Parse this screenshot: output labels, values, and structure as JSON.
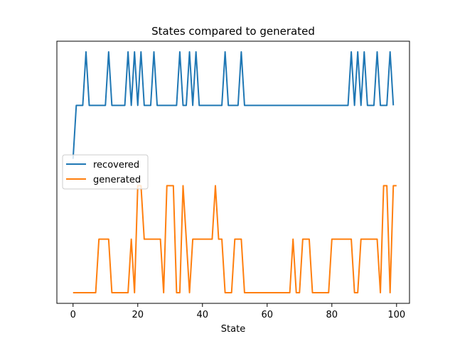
{
  "chart_data": {
    "type": "line",
    "title": "States compared to generated",
    "xlabel": "State",
    "ylabel": "",
    "xlim": [
      -5,
      104
    ],
    "ylim": [
      -0.2,
      4.7
    ],
    "x_ticks": [
      0,
      20,
      40,
      60,
      80,
      100
    ],
    "y_ticks_visible": false,
    "grid": false,
    "legend_position": "center-left",
    "series": [
      {
        "name": "recovered",
        "color": "#1f77b4",
        "values": [
          2.5,
          3.5,
          3.5,
          3.5,
          4.5,
          3.5,
          3.5,
          3.5,
          3.5,
          3.5,
          3.5,
          4.5,
          3.5,
          3.5,
          3.5,
          3.5,
          3.5,
          4.5,
          3.5,
          4.5,
          3.5,
          4.5,
          3.5,
          3.5,
          3.5,
          4.5,
          3.5,
          3.5,
          3.5,
          3.5,
          3.5,
          3.5,
          3.5,
          4.5,
          3.5,
          3.5,
          4.5,
          3.5,
          4.5,
          3.5,
          3.5,
          3.5,
          3.5,
          3.5,
          3.5,
          3.5,
          3.5,
          4.5,
          3.5,
          3.5,
          3.5,
          3.5,
          4.5,
          3.5,
          3.5,
          3.5,
          3.5,
          3.5,
          3.5,
          3.5,
          3.5,
          3.5,
          3.5,
          3.5,
          3.5,
          3.5,
          3.5,
          3.5,
          3.5,
          3.5,
          3.5,
          3.5,
          3.5,
          3.5,
          3.5,
          3.5,
          3.5,
          3.5,
          3.5,
          3.5,
          3.5,
          3.5,
          3.5,
          3.5,
          3.5,
          3.5,
          4.5,
          3.5,
          4.5,
          3.5,
          4.5,
          3.5,
          3.5,
          3.5,
          4.5,
          3.5,
          3.5,
          3.5,
          4.5,
          3.5
        ]
      },
      {
        "name": "generated",
        "color": "#ff7f0e",
        "values": [
          0,
          0,
          0,
          0,
          0,
          0,
          0,
          0,
          1,
          1,
          1,
          1,
          0,
          0,
          0,
          0,
          0,
          0,
          1,
          0,
          2,
          2,
          1,
          1,
          1,
          1,
          1,
          1,
          0,
          2,
          2,
          2,
          0,
          0,
          2,
          1,
          0,
          1,
          1,
          1,
          1,
          1,
          1,
          1,
          2,
          1,
          1,
          0,
          0,
          0,
          1,
          1,
          1,
          0,
          0,
          0,
          0,
          0,
          0,
          0,
          0,
          0,
          0,
          0,
          0,
          0,
          0,
          0,
          1,
          0,
          0,
          1,
          1,
          1,
          0,
          0,
          0,
          0,
          0,
          0,
          1,
          1,
          1,
          1,
          1,
          1,
          1,
          0,
          0,
          1,
          1,
          1,
          1,
          1,
          1,
          0,
          2,
          2,
          0,
          2,
          2
        ]
      }
    ]
  }
}
